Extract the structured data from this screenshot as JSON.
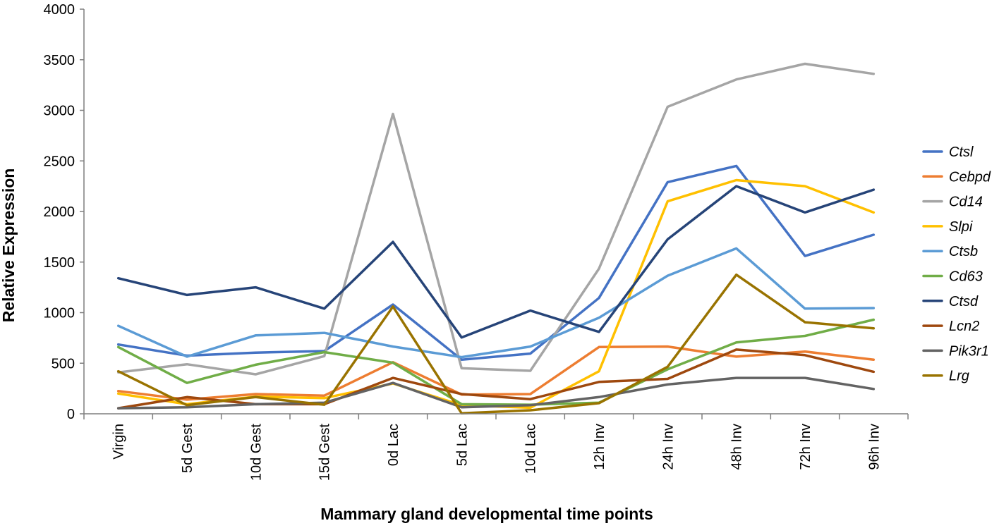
{
  "chart_data": {
    "type": "line",
    "title": "",
    "xlabel": "Mammary gland developmental time points",
    "ylabel": "Relative Expression",
    "ylim": [
      0,
      4000
    ],
    "yticks": [
      0,
      500,
      1000,
      1500,
      2000,
      2500,
      3000,
      3500,
      4000
    ],
    "grid": false,
    "legend_position": "right",
    "categories": [
      "Virgin",
      "5d Gest",
      "10d Gest",
      "15d Gest",
      "0d Lac",
      "5d Lac",
      "10d Lac",
      "12h Inv",
      "24h Inv",
      "48h Inv",
      "72h Inv",
      "96h Inv"
    ],
    "series": [
      {
        "name": "Ctsl",
        "color": "#4472C4",
        "values": [
          685,
          575,
          605,
          620,
          1080,
          535,
          595,
          1145,
          2290,
          2450,
          1560,
          1770
        ]
      },
      {
        "name": "Cebpd",
        "color": "#ED7D31",
        "values": [
          225,
          140,
          195,
          180,
          510,
          190,
          195,
          660,
          665,
          565,
          615,
          535
        ]
      },
      {
        "name": "Cd14",
        "color": "#A5A5A5",
        "values": [
          410,
          490,
          390,
          570,
          2965,
          450,
          425,
          1435,
          3035,
          3305,
          3460,
          3360
        ]
      },
      {
        "name": "Slpi",
        "color": "#FFC000",
        "values": [
          200,
          95,
          170,
          155,
          300,
          85,
          60,
          420,
          2100,
          2310,
          2250,
          1990
        ]
      },
      {
        "name": "Ctsb",
        "color": "#5B9BD5",
        "values": [
          870,
          565,
          775,
          800,
          665,
          560,
          665,
          950,
          1365,
          1635,
          1040,
          1045
        ]
      },
      {
        "name": "Cd63",
        "color": "#70AD47",
        "values": [
          660,
          305,
          485,
          610,
          505,
          95,
          90,
          110,
          440,
          705,
          770,
          930
        ]
      },
      {
        "name": "Ctsd",
        "color": "#264478",
        "values": [
          1340,
          1175,
          1250,
          1040,
          1700,
          755,
          1020,
          810,
          1725,
          2250,
          1990,
          2215
        ]
      },
      {
        "name": "Lcn2",
        "color": "#9E480E",
        "values": [
          55,
          165,
          95,
          95,
          355,
          195,
          145,
          315,
          345,
          635,
          580,
          415
        ]
      },
      {
        "name": "Pik3r1",
        "color": "#636363",
        "values": [
          55,
          65,
          95,
          110,
          305,
          65,
          85,
          165,
          290,
          355,
          355,
          245
        ]
      },
      {
        "name": "Lrg",
        "color": "#997300",
        "values": [
          420,
          85,
          165,
          90,
          1060,
          5,
          35,
          105,
          465,
          1375,
          905,
          845
        ]
      }
    ]
  }
}
